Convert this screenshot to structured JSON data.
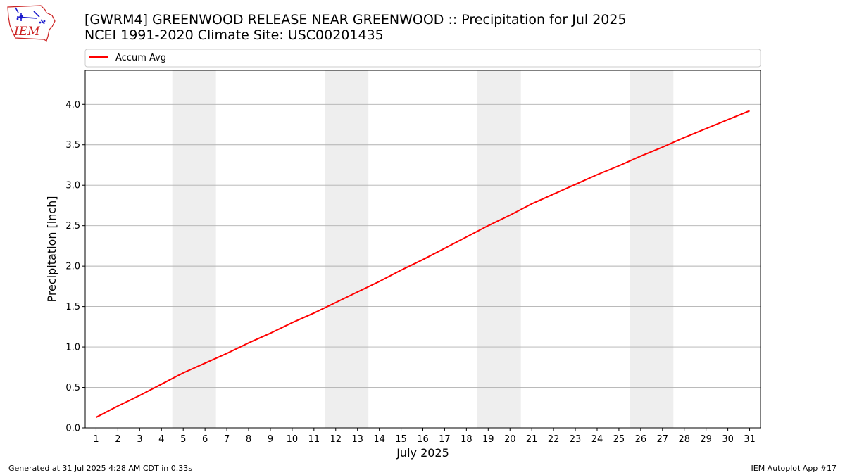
{
  "header": {
    "title_line1": "[GWRM4] GREENWOOD RELEASE NEAR GREENWOOD :: Precipitation for Jul 2025",
    "title_line2": "NCEI 1991-2020 Climate Site: USC00201435",
    "logo_text": "IEM"
  },
  "footer": {
    "generated": "Generated at 31 Jul 2025 4:28 AM CDT in 0.33s",
    "app": "IEM Autoplot App #17"
  },
  "colors": {
    "line": "#ff0000",
    "weekend_band": "#eeeeee",
    "grid": "#b0b0b0",
    "logo": "#cc2222",
    "logo_icons": "#1a1acc"
  },
  "chart_data": {
    "type": "line",
    "xlabel": "July 2025",
    "ylabel": "Precipitation [inch]",
    "categories": [
      "1",
      "2",
      "3",
      "4",
      "5",
      "6",
      "7",
      "8",
      "9",
      "10",
      "11",
      "12",
      "13",
      "14",
      "15",
      "16",
      "17",
      "18",
      "19",
      "20",
      "21",
      "22",
      "23",
      "24",
      "25",
      "26",
      "27",
      "28",
      "29",
      "30",
      "31"
    ],
    "series": [
      {
        "name": "Accum Avg",
        "color": "#ff0000",
        "values": [
          0.13,
          0.27,
          0.4,
          0.54,
          0.68,
          0.8,
          0.92,
          1.05,
          1.17,
          1.3,
          1.42,
          1.55,
          1.68,
          1.81,
          1.95,
          2.08,
          2.22,
          2.36,
          2.5,
          2.63,
          2.77,
          2.89,
          3.01,
          3.13,
          3.24,
          3.36,
          3.47,
          3.59,
          3.7,
          3.81,
          3.92
        ]
      }
    ],
    "weekend_days": [
      [
        5,
        6
      ],
      [
        12,
        13
      ],
      [
        19,
        20
      ],
      [
        26,
        27
      ]
    ],
    "ylim": [
      0,
      4.42
    ],
    "yticks": [
      0.0,
      0.5,
      1.0,
      1.5,
      2.0,
      2.5,
      3.0,
      3.5,
      4.0
    ],
    "grid": "horizontal",
    "legend_position": "top"
  }
}
